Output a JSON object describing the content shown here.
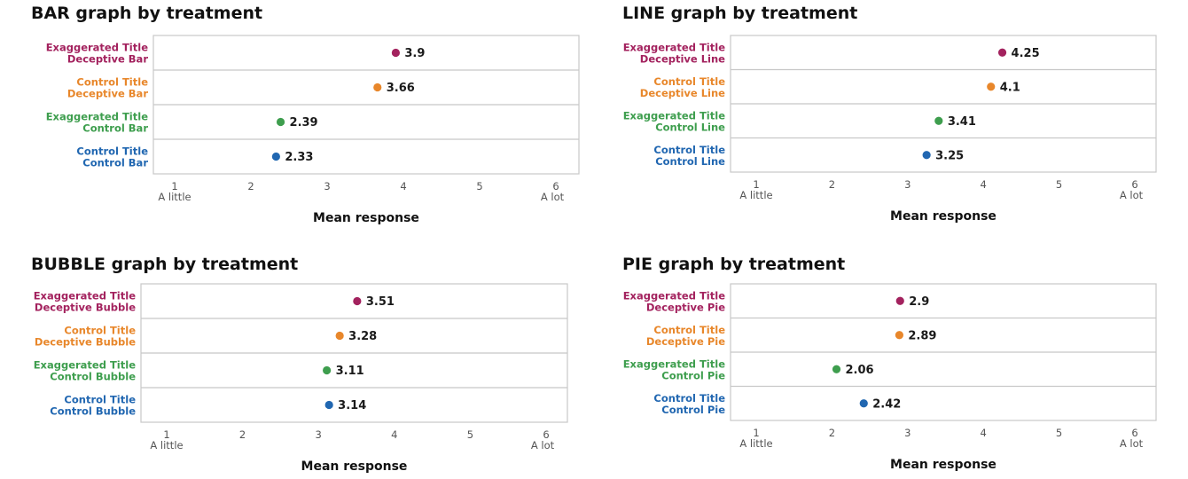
{
  "colors": {
    "magenta": "#A3225E",
    "orange": "#E8872B",
    "green": "#3E9E4E",
    "blue": "#2167B1",
    "grid": "#c8c8c8"
  },
  "panels": [
    {
      "title": "BAR graph by treatment",
      "chart_data": {
        "type": "scatter",
        "title": "BAR graph by treatment",
        "xlabel": "Mean response",
        "xlim": [
          1,
          6
        ],
        "xticks": [
          1,
          2,
          3,
          4,
          5,
          6
        ],
        "xtick_labels": [
          "1",
          "2",
          "3",
          "4",
          "5",
          "6"
        ],
        "xtick_sublabels": {
          "start": "A little",
          "end": "A lot"
        },
        "points": [
          {
            "label": [
              "Exaggerated Title",
              "Deceptive Bar"
            ],
            "value": 3.9,
            "display": "3.9",
            "color": "magenta"
          },
          {
            "label": [
              "Control Title",
              "Deceptive Bar"
            ],
            "value": 3.66,
            "display": "3.66",
            "color": "orange"
          },
          {
            "label": [
              "Exaggerated Title",
              "Control Bar"
            ],
            "value": 2.39,
            "display": "2.39",
            "color": "green"
          },
          {
            "label": [
              "Control Title",
              "Control Bar"
            ],
            "value": 2.33,
            "display": "2.33",
            "color": "blue"
          }
        ]
      }
    },
    {
      "title": "LINE graph by treatment",
      "chart_data": {
        "type": "scatter",
        "title": "LINE graph by treatment",
        "xlabel": "Mean response",
        "xlim": [
          1,
          6
        ],
        "xticks": [
          1,
          2,
          3,
          4,
          5,
          6
        ],
        "xtick_labels": [
          "1",
          "2",
          "3",
          "4",
          "5",
          "6"
        ],
        "xtick_sublabels": {
          "start": "A little",
          "end": "A lot"
        },
        "points": [
          {
            "label": [
              "Exaggerated Title",
              "Deceptive Line"
            ],
            "value": 4.25,
            "display": "4.25",
            "color": "magenta"
          },
          {
            "label": [
              "Control Title",
              "Deceptive Line"
            ],
            "value": 4.1,
            "display": "4.1",
            "color": "orange"
          },
          {
            "label": [
              "Exaggerated Title",
              "Control Line"
            ],
            "value": 3.41,
            "display": "3.41",
            "color": "green"
          },
          {
            "label": [
              "Control Title",
              "Control Line"
            ],
            "value": 3.25,
            "display": "3.25",
            "color": "blue"
          }
        ]
      }
    },
    {
      "title": "BUBBLE graph by treatment",
      "chart_data": {
        "type": "scatter",
        "title": "BUBBLE graph by treatment",
        "xlabel": "Mean response",
        "xlim": [
          1,
          6
        ],
        "xticks": [
          1,
          2,
          3,
          4,
          5,
          6
        ],
        "xtick_labels": [
          "1",
          "2",
          "3",
          "4",
          "5",
          "6"
        ],
        "xtick_sublabels": {
          "start": "A little",
          "end": "A lot"
        },
        "points": [
          {
            "label": [
              "Exaggerated Title",
              "Deceptive Bubble"
            ],
            "value": 3.51,
            "display": "3.51",
            "color": "magenta"
          },
          {
            "label": [
              "Control Title",
              "Deceptive Bubble"
            ],
            "value": 3.28,
            "display": "3.28",
            "color": "orange"
          },
          {
            "label": [
              "Exaggerated Title",
              "Control Bubble"
            ],
            "value": 3.11,
            "display": "3.11",
            "color": "green"
          },
          {
            "label": [
              "Control Title",
              "Control Bubble"
            ],
            "value": 3.14,
            "display": "3.14",
            "color": "blue"
          }
        ]
      }
    },
    {
      "title": "PIE graph by treatment",
      "chart_data": {
        "type": "scatter",
        "title": "PIE graph by treatment",
        "xlabel": "Mean response",
        "xlim": [
          1,
          6
        ],
        "xticks": [
          1,
          2,
          3,
          4,
          5,
          6
        ],
        "xtick_labels": [
          "1",
          "2",
          "3",
          "4",
          "5",
          "6"
        ],
        "xtick_sublabels": {
          "start": "A little",
          "end": "A lot"
        },
        "points": [
          {
            "label": [
              "Exaggerated Title",
              "Deceptive Pie"
            ],
            "value": 2.9,
            "display": "2.9",
            "color": "magenta"
          },
          {
            "label": [
              "Control Title",
              "Deceptive Pie"
            ],
            "value": 2.89,
            "display": "2.89",
            "color": "orange"
          },
          {
            "label": [
              "Exaggerated Title",
              "Control Pie"
            ],
            "value": 2.06,
            "display": "2.06",
            "color": "green"
          },
          {
            "label": [
              "Control Title",
              "Control Pie"
            ],
            "value": 2.42,
            "display": "2.42",
            "color": "blue"
          }
        ]
      }
    }
  ]
}
